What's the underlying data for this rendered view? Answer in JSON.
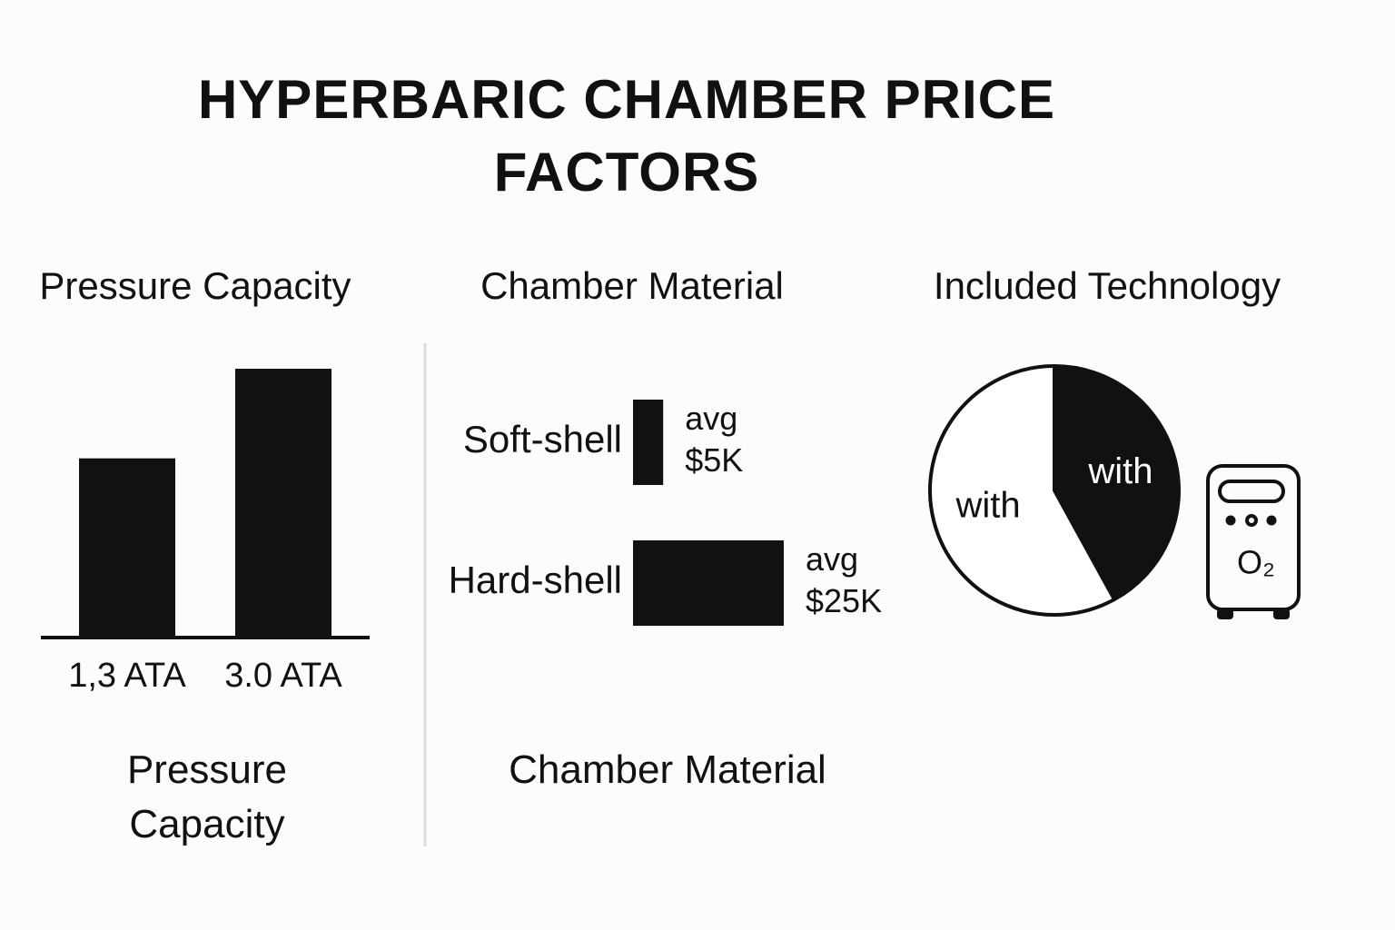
{
  "title": "HYPERBARIC CHAMBER PRICE FACTORS",
  "chart_data": [
    {
      "type": "bar",
      "title": "Pressure Capacity",
      "footer": "Pressure Capacity",
      "categories": [
        "1,3 ATA",
        "3.0 ATA"
      ],
      "values": [
        2,
        3
      ],
      "color": "#111111"
    },
    {
      "type": "hbar",
      "title": "Chamber Material",
      "footer": "Chamber Material",
      "categories": [
        "Soft-shell",
        "Hard-shell"
      ],
      "values": [
        5,
        25
      ],
      "value_labels": [
        "avg\n$5K",
        "avg\n$25K"
      ],
      "color": "#111111"
    },
    {
      "type": "pie",
      "title": "Included Technology",
      "annotation": "O₂",
      "categories": [
        "with",
        "with"
      ],
      "values": [
        42,
        58
      ],
      "colors": [
        "#111111",
        "#ffffff"
      ]
    }
  ]
}
